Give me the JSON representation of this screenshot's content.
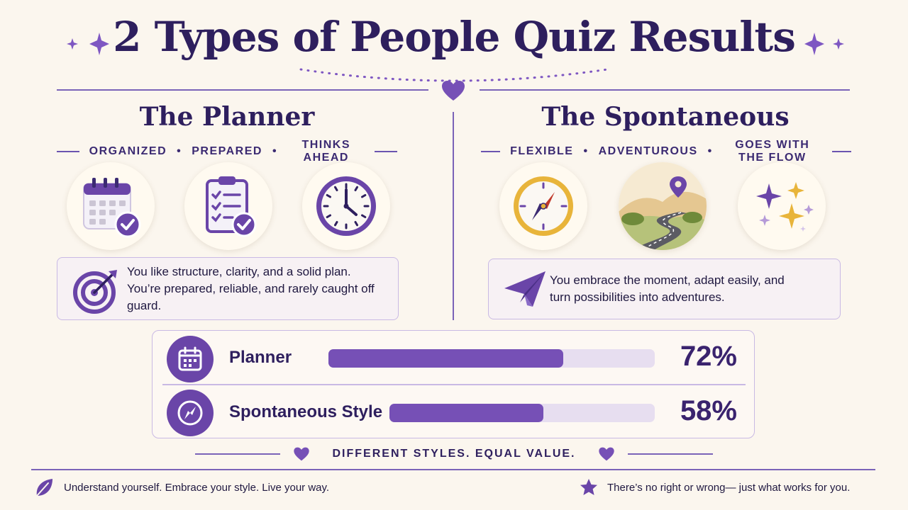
{
  "title": "2 Types of People Quiz Results",
  "planner": {
    "heading": "The Planner",
    "traits": [
      "ORGANIZED",
      "PREPARED",
      "THINKS AHEAD"
    ],
    "icons": [
      "calendar-check-icon",
      "clipboard-checklist-icon",
      "clock-icon"
    ],
    "description": "You like structure, clarity, and a solid plan. You’re prepared, reliable, and rarely caught off guard.",
    "description_icon": "target-icon"
  },
  "spontaneous": {
    "heading": "The Spontaneous",
    "traits": [
      "FLEXIBLE",
      "ADVENTUROUS",
      "GOES WITH THE FLOW"
    ],
    "icons": [
      "compass-icon",
      "winding-road-icon",
      "sparkles-icon"
    ],
    "description": "You embrace the moment, adapt easily, and turn possibilities into adventures.",
    "description_icon": "paper-plane-icon"
  },
  "scores": [
    {
      "label": "Planner",
      "value": 72,
      "display": "72%",
      "icon": "calendar-icon"
    },
    {
      "label": "Spontaneous Style",
      "value": 58,
      "display": "58%",
      "icon": "compass-icon"
    }
  ],
  "tagline": "DIFFERENT STYLES. EQUAL VALUE.",
  "footer": {
    "left": "Understand yourself. Embrace your style. Live your way.",
    "right": "There’s no right or wrong— just what works for you."
  },
  "colors": {
    "background": "#fbf6ee",
    "primary": "#2e1f5e",
    "accent": "#7650b6",
    "bar_track": "#e7def0",
    "gold": "#e8b43a"
  }
}
